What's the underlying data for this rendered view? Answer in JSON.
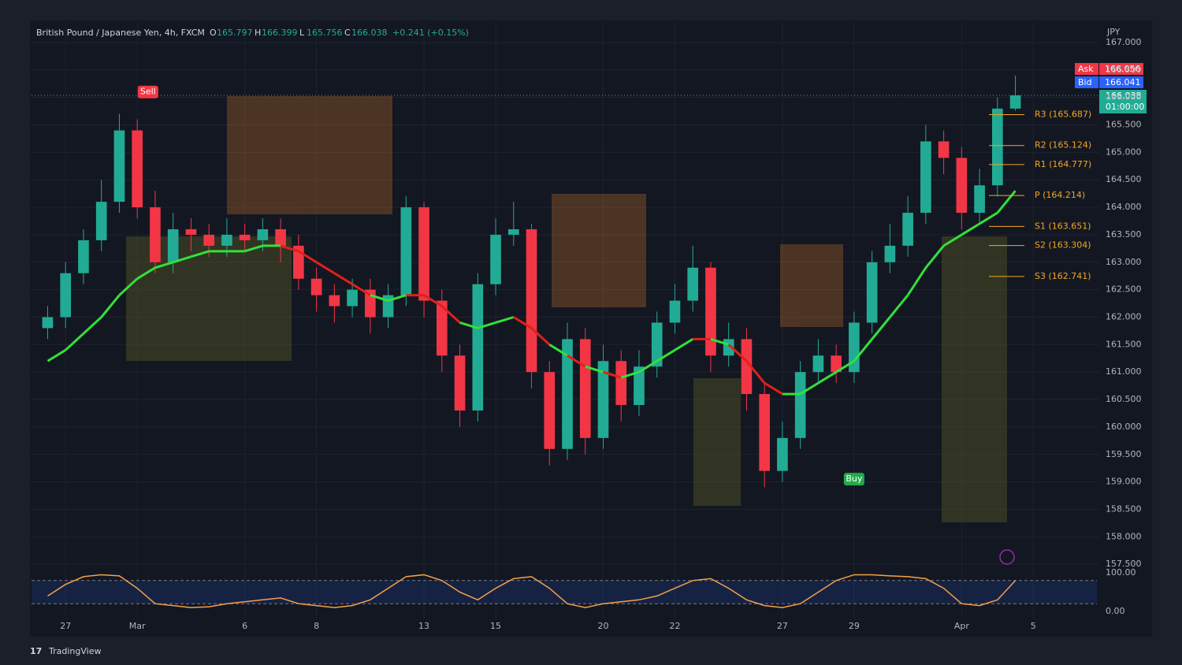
{
  "header": {
    "symbol": "British Pound / Japanese Yen, 4h, FXCM",
    "ohlc": [
      {
        "label": "O",
        "value": "165.797"
      },
      {
        "label": "H",
        "value": "166.399"
      },
      {
        "label": "L",
        "value": "165.756"
      },
      {
        "label": "C",
        "value": "166.038"
      }
    ],
    "change": "+0.241 (+0.15%)"
  },
  "quote": {
    "currency": "JPY",
    "ask_label": "Ask",
    "ask": "166.056",
    "bid_label": "Bid",
    "bid": "166.041",
    "last": "166.038",
    "countdown": "01:00:00"
  },
  "brand": "TradingView",
  "chart_data": {
    "type": "candlestick",
    "x": [
      -0.5,
      0,
      0.5,
      1,
      1.5,
      2,
      2.5,
      3,
      3.5,
      4,
      4.5,
      5,
      5.5,
      6,
      6.5,
      7,
      7.5,
      8,
      8.5,
      9,
      9.5,
      10,
      10.5,
      11,
      11.5,
      12,
      12.5,
      13,
      13.5,
      14,
      14.5,
      15,
      15.5,
      16,
      16.5,
      17,
      17.5,
      18,
      18.5,
      19,
      19.5,
      20,
      20.5,
      21,
      21.5,
      22,
      22.5,
      23,
      23.5,
      24,
      24.5,
      25,
      25.5,
      26,
      26.5
    ],
    "open": [
      161.8,
      162.0,
      162.8,
      163.4,
      164.1,
      165.4,
      164.0,
      163.0,
      163.6,
      163.5,
      163.3,
      163.5,
      163.4,
      163.6,
      163.3,
      162.7,
      162.4,
      162.2,
      162.5,
      162.0,
      162.4,
      164.0,
      162.3,
      161.3,
      160.3,
      162.6,
      163.5,
      163.6,
      161.0,
      159.6,
      161.6,
      159.8,
      161.2,
      160.4,
      161.1,
      161.9,
      162.3,
      162.9,
      161.3,
      161.6,
      160.6,
      159.2,
      159.8,
      161.0,
      161.3,
      161.0,
      161.9,
      163.0,
      163.3,
      163.9,
      165.2,
      164.9,
      163.9,
      164.4,
      165.797
    ],
    "high": [
      162.2,
      163.0,
      163.6,
      164.5,
      165.7,
      165.6,
      164.3,
      163.9,
      163.8,
      163.7,
      163.8,
      163.7,
      163.8,
      163.8,
      163.5,
      162.9,
      162.6,
      162.7,
      162.7,
      162.6,
      164.2,
      164.1,
      162.5,
      161.5,
      162.8,
      163.8,
      164.1,
      163.7,
      161.2,
      161.9,
      161.8,
      161.5,
      161.4,
      161.4,
      162.1,
      162.6,
      163.3,
      163.0,
      161.9,
      161.8,
      160.8,
      160.1,
      161.2,
      161.6,
      161.5,
      162.1,
      163.2,
      163.7,
      164.2,
      165.5,
      165.4,
      165.1,
      164.7,
      166.0,
      166.399
    ],
    "low": [
      161.6,
      161.8,
      162.6,
      163.2,
      163.9,
      163.8,
      162.8,
      162.8,
      163.2,
      163.1,
      163.1,
      163.2,
      163.2,
      163.0,
      162.5,
      162.1,
      161.9,
      162.0,
      161.7,
      161.8,
      162.2,
      162.0,
      161.0,
      160.0,
      160.1,
      162.4,
      163.3,
      160.7,
      159.3,
      159.4,
      159.5,
      159.6,
      160.1,
      160.2,
      160.9,
      161.7,
      162.1,
      161.0,
      161.1,
      160.3,
      158.9,
      159.0,
      159.6,
      160.8,
      160.8,
      160.8,
      161.7,
      162.8,
      163.1,
      163.7,
      164.6,
      163.6,
      163.7,
      164.2,
      165.756
    ],
    "close": [
      162.0,
      162.8,
      163.4,
      164.1,
      165.4,
      164.0,
      163.0,
      163.6,
      163.5,
      163.3,
      163.5,
      163.4,
      163.6,
      163.3,
      162.7,
      162.4,
      162.2,
      162.5,
      162.0,
      162.4,
      164.0,
      162.3,
      161.3,
      160.3,
      162.6,
      163.5,
      163.6,
      161.0,
      159.6,
      161.6,
      159.8,
      161.2,
      160.4,
      161.1,
      161.9,
      162.3,
      162.9,
      161.3,
      161.6,
      160.6,
      159.2,
      159.8,
      161.0,
      161.3,
      161.0,
      161.9,
      163.0,
      163.3,
      163.9,
      165.2,
      164.9,
      163.9,
      164.4,
      165.797,
      166.038
    ],
    "up_color": "#22ab94",
    "down_color": "#f23645",
    "ma": [
      161.2,
      161.4,
      161.7,
      162.0,
      162.4,
      162.7,
      162.9,
      163.0,
      163.1,
      163.2,
      163.2,
      163.2,
      163.3,
      163.3,
      163.2,
      163.0,
      162.8,
      162.6,
      162.4,
      162.3,
      162.4,
      162.4,
      162.2,
      161.9,
      161.8,
      161.9,
      162.0,
      161.8,
      161.5,
      161.3,
      161.1,
      161.0,
      160.9,
      161.0,
      161.2,
      161.4,
      161.6,
      161.6,
      161.5,
      161.2,
      160.8,
      160.6,
      160.6,
      160.8,
      161.0,
      161.2,
      161.6,
      162.0,
      162.4,
      162.9,
      163.3,
      163.5,
      163.7,
      163.9,
      164.3
    ],
    "ma_up_color": "#33e03a",
    "ma_down_color": "#e0201c",
    "xlim": [
      -0.95,
      28.84
    ],
    "xticks": [
      {
        "value": 0,
        "label": "27"
      },
      {
        "value": 2,
        "label": "Mar"
      },
      {
        "value": 5,
        "label": "6"
      },
      {
        "value": 7,
        "label": "8"
      },
      {
        "value": 10,
        "label": "13"
      },
      {
        "value": 12,
        "label": "15"
      },
      {
        "value": 15,
        "label": "20"
      },
      {
        "value": 17,
        "label": "22"
      },
      {
        "value": 20,
        "label": "27"
      },
      {
        "value": 22,
        "label": "29"
      },
      {
        "value": 25,
        "label": "Apr"
      },
      {
        "value": 27,
        "label": "5"
      }
    ],
    "ylim": [
      157.445,
      167.344
    ],
    "yticks": [
      {
        "value": 157.5,
        "label": "157.500"
      },
      {
        "value": 158,
        "label": "158.000"
      },
      {
        "value": 158.5,
        "label": "158.500"
      },
      {
        "value": 159,
        "label": "159.000"
      },
      {
        "value": 159.5,
        "label": "159.500"
      },
      {
        "value": 160,
        "label": "160.000"
      },
      {
        "value": 160.5,
        "label": "160.500"
      },
      {
        "value": 161,
        "label": "161.000"
      },
      {
        "value": 161.5,
        "label": "161.500"
      },
      {
        "value": 162,
        "label": "162.000"
      },
      {
        "value": 162.5,
        "label": "162.500"
      },
      {
        "value": 163,
        "label": "163.000"
      },
      {
        "value": 163.5,
        "label": "163.500"
      },
      {
        "value": 164,
        "label": "164.000"
      },
      {
        "value": 164.5,
        "label": "164.500"
      },
      {
        "value": 165,
        "label": "165.000"
      },
      {
        "value": 165.5,
        "label": "165.500"
      },
      {
        "value": 166,
        "label": "166.000"
      },
      {
        "value": 166.5,
        "label": "166.500"
      },
      {
        "value": 167,
        "label": "167.000"
      }
    ],
    "grid": true,
    "pivots": [
      {
        "label": "R3 (165.687)",
        "value": 165.687
      },
      {
        "label": "R2 (165.124)",
        "value": 165.124
      },
      {
        "label": "R1 (164.777)",
        "value": 164.777
      },
      {
        "label": "P (164.214)",
        "value": 164.214
      },
      {
        "label": "S1 (163.651)",
        "value": 163.651
      },
      {
        "label": "S2 (163.304)",
        "value": 163.304
      },
      {
        "label": "S3 (162.741)",
        "value": 162.741
      }
    ],
    "pivot_color": "#f5a623",
    "signals": [
      {
        "label": "Sell",
        "x": 2.3,
        "value": 166.1,
        "color": "#f23645"
      },
      {
        "label": "Buy",
        "x": 22,
        "value": 159.05,
        "color": "#22ab4a"
      }
    ],
    "oscillator": {
      "values": [
        40,
        70,
        90,
        95,
        92,
        60,
        20,
        15,
        10,
        12,
        20,
        25,
        30,
        35,
        20,
        15,
        10,
        15,
        30,
        60,
        90,
        95,
        80,
        50,
        30,
        60,
        85,
        90,
        60,
        20,
        10,
        20,
        25,
        30,
        40,
        60,
        80,
        85,
        60,
        30,
        15,
        10,
        20,
        50,
        80,
        95,
        95,
        92,
        90,
        85,
        60,
        20,
        15,
        30,
        80
      ],
      "color": "#f5a04a",
      "ylim": [
        0,
        100
      ],
      "yticks": [
        {
          "value": 100,
          "label": "100.00"
        },
        {
          "value": 0,
          "label": "0.00"
        }
      ],
      "levels": [
        20,
        80
      ]
    }
  }
}
